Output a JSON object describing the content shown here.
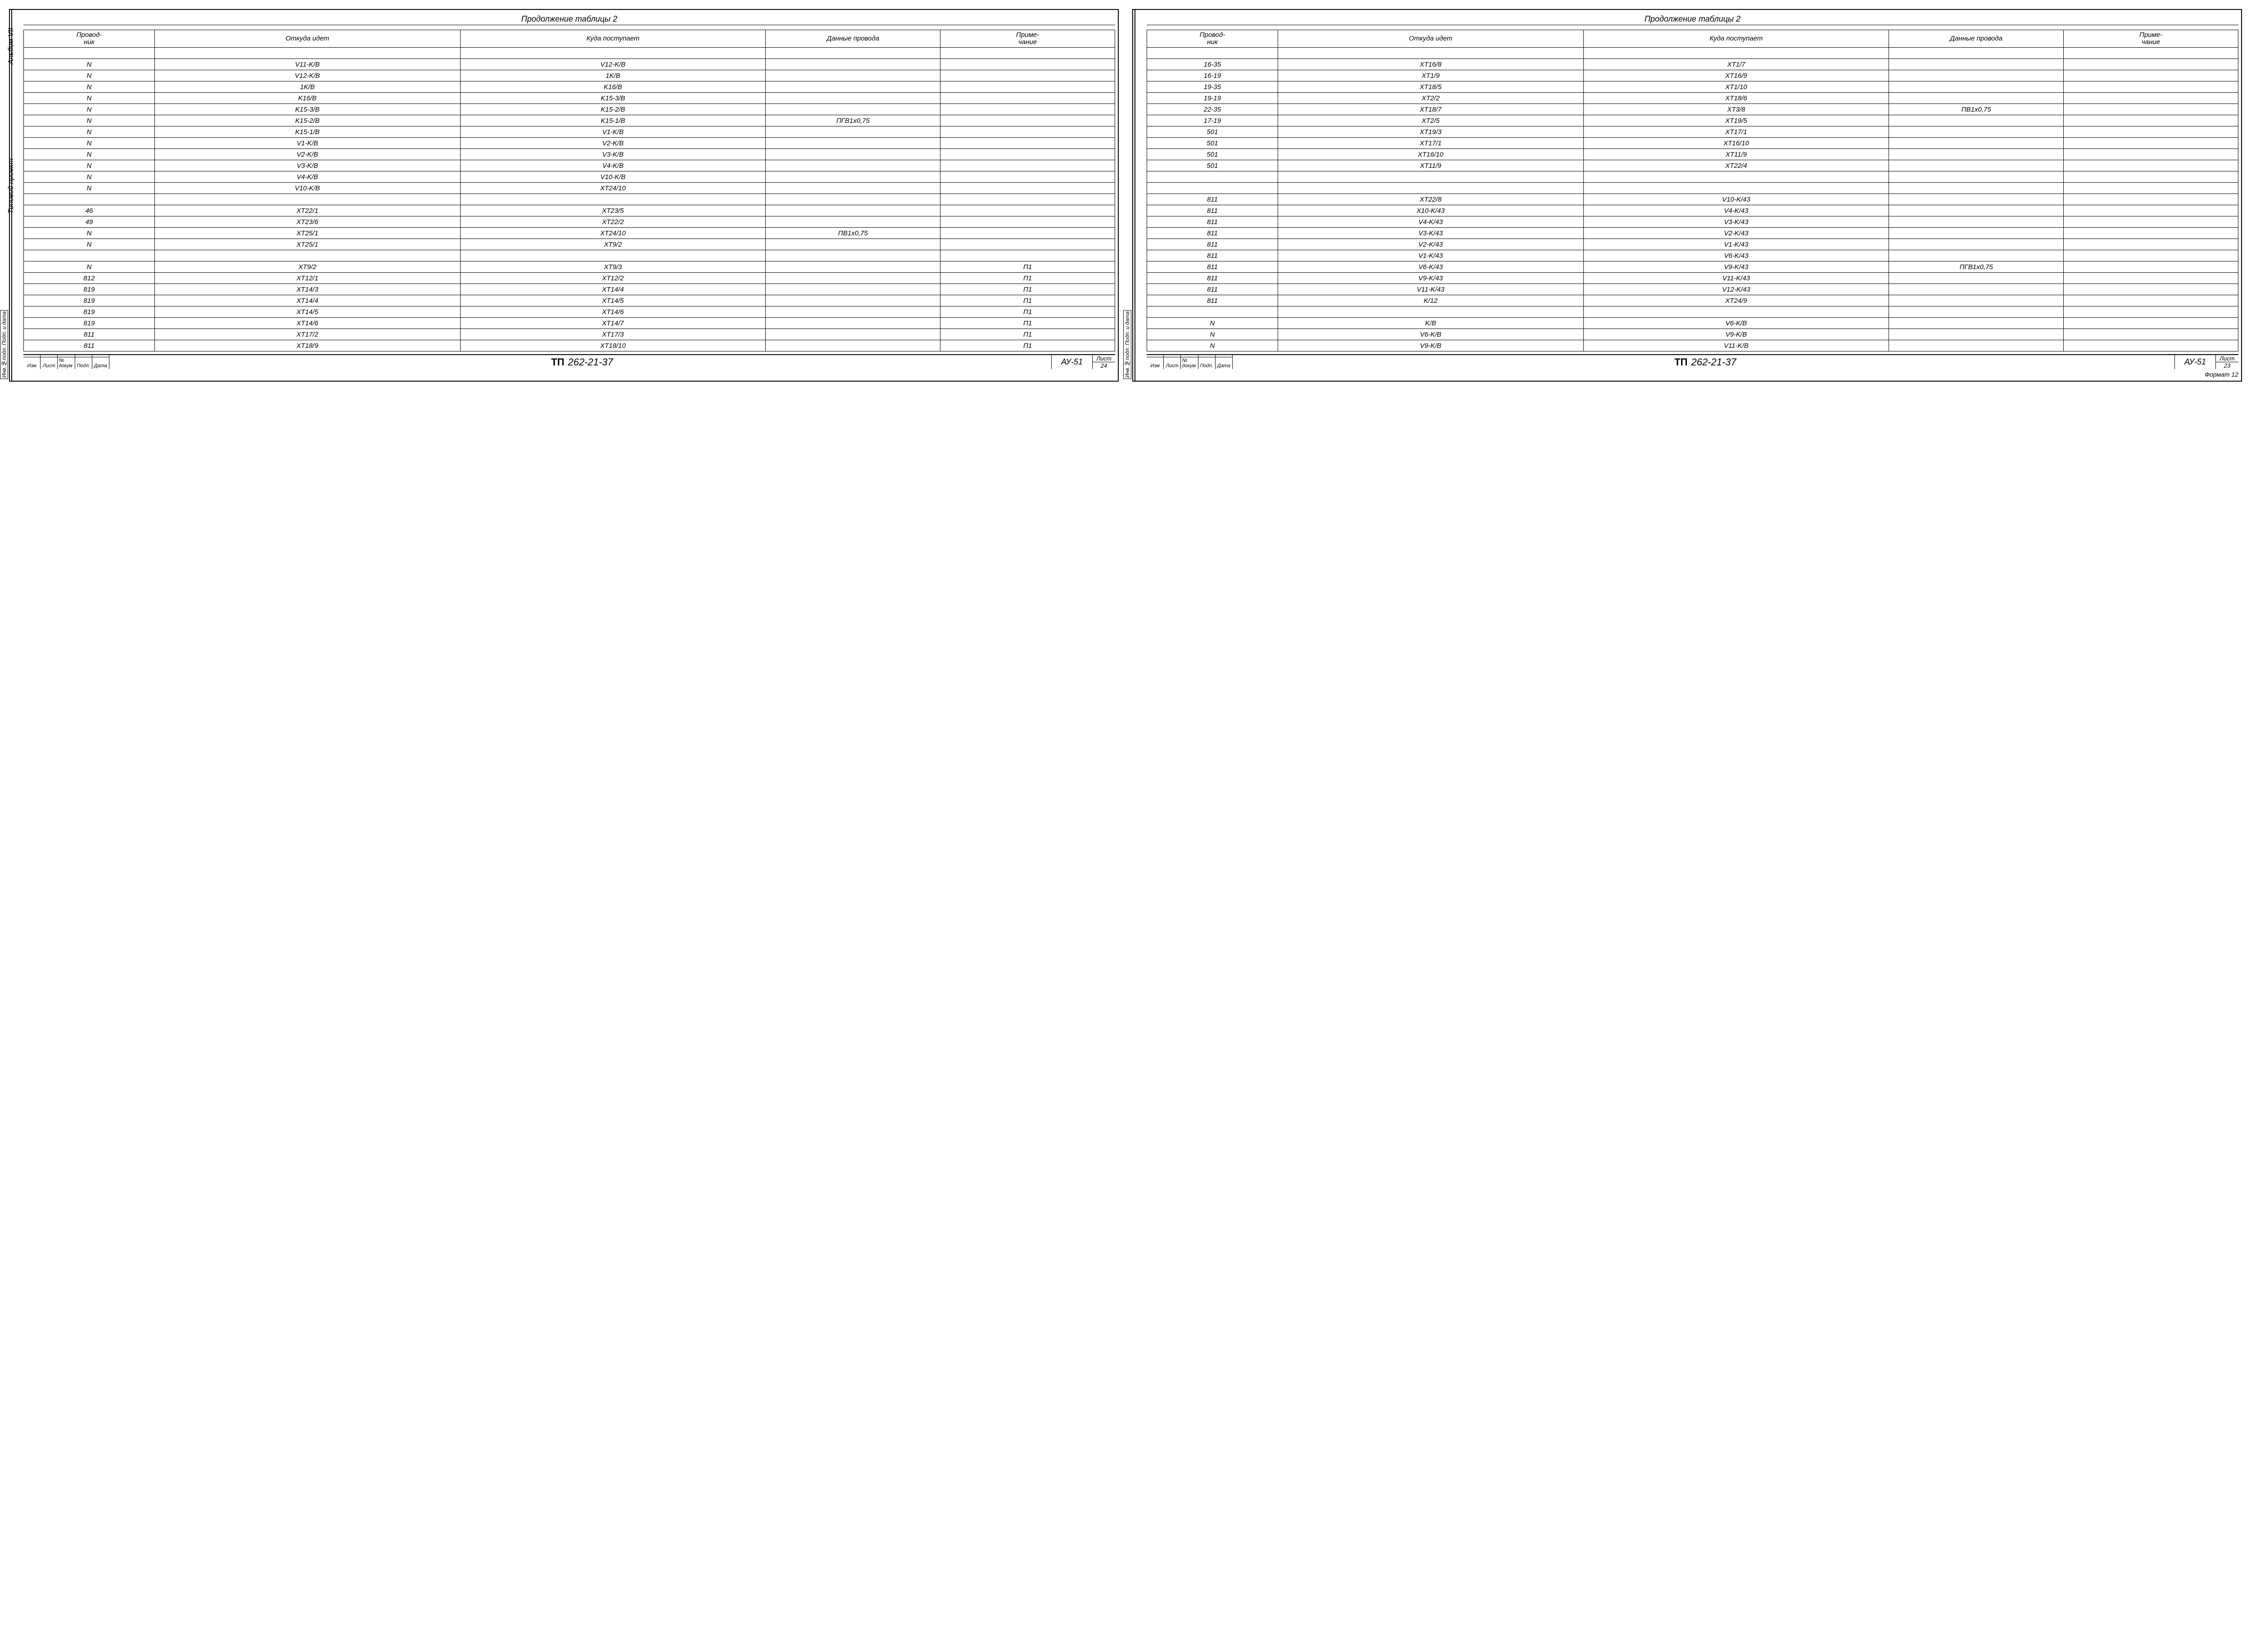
{
  "sheets": [
    {
      "continuation": "Продолжение таблицы 2",
      "vlabel1": "Альбом VII",
      "vlabel2": "Типовой проект",
      "side_stamp": "Инв.№подл. Подп. и дата",
      "headers": [
        "Провод-ник",
        "Откуда идет",
        "Куда поступает",
        "Данные провода",
        "Приме-чание"
      ],
      "rows": [
        [
          "N",
          "V11-K/B",
          "V12-K/B",
          "",
          ""
        ],
        [
          "N",
          "V12-K/B",
          "1K/B",
          "",
          ""
        ],
        [
          "N",
          "1K/B",
          "K16/B",
          "",
          ""
        ],
        [
          "N",
          "K16/B",
          "K15-3/B",
          "",
          ""
        ],
        [
          "N",
          "K15-3/B",
          "K15-2/B",
          "",
          ""
        ],
        [
          "N",
          "K15-2/B",
          "K15-1/B",
          "ПГВ1х0,75",
          ""
        ],
        [
          "N",
          "K15-1/B",
          "V1-K/B",
          "",
          ""
        ],
        [
          "N",
          "V1-K/B",
          "V2-K/B",
          "",
          ""
        ],
        [
          "N",
          "V2-K/B",
          "V3-K/B",
          "",
          ""
        ],
        [
          "N",
          "V3-K/B",
          "V4-K/B",
          "",
          ""
        ],
        [
          "N",
          "V4-K/B",
          "V10-K/B",
          "",
          ""
        ],
        [
          "N",
          "V10-K/B",
          "XT24/10",
          "",
          ""
        ],
        [
          "",
          "",
          "",
          "",
          ""
        ],
        [
          "46",
          "XT22/1",
          "XT23/5",
          "",
          ""
        ],
        [
          "49",
          "XT23/6",
          "XT22/2",
          "",
          ""
        ],
        [
          "N",
          "XT25/1",
          "XT24/10",
          "ПВ1х0,75",
          ""
        ],
        [
          "N",
          "XT25/1",
          "XT9/2",
          "",
          ""
        ],
        [
          "",
          "",
          "",
          "",
          ""
        ],
        [
          "N",
          "XT9/2",
          "XT9/3",
          "",
          "П1"
        ],
        [
          "812",
          "XT12/1",
          "XT12/2",
          "",
          "П1"
        ],
        [
          "819",
          "XT14/3",
          "XT14/4",
          "",
          "П1"
        ],
        [
          "819",
          "XT14/4",
          "XT14/5",
          "",
          "П1"
        ],
        [
          "819",
          "XT14/5",
          "XT14/6",
          "",
          "П1"
        ],
        [
          "819",
          "XT14/6",
          "XT14/7",
          "",
          "П1"
        ],
        [
          "811",
          "XT17/2",
          "XT17/3",
          "",
          "П1"
        ],
        [
          "811",
          "XT18/9",
          "XT18/10",
          "",
          "П1"
        ]
      ],
      "titleblock": {
        "rev_cells": [
          "Изм",
          "Лист",
          "№ докум",
          "Подп.",
          "Дата"
        ],
        "tp": "ТП",
        "code": "262-21-37",
        "suffix": "АУ-51",
        "sheet_label": "Лист",
        "sheet_num": "24"
      }
    },
    {
      "continuation": "Продолжение таблицы 2",
      "side_stamp": "Инв.№подл. Подп. и дата",
      "headers": [
        "Провод-ник",
        "Откуда идет",
        "Куда поступает",
        "Данные провода",
        "Приме-чание"
      ],
      "rows": [
        [
          "16-35",
          "XT16/8",
          "XT1/7",
          "",
          ""
        ],
        [
          "16-19",
          "XT1/9",
          "XT16/9",
          "",
          ""
        ],
        [
          "19-35",
          "XT18/5",
          "XT1/10",
          "",
          ""
        ],
        [
          "19-19",
          "XT2/2",
          "XT18/6",
          "",
          ""
        ],
        [
          "22-35",
          "XT18/7",
          "XT3/8",
          "ПВ1х0,75",
          ""
        ],
        [
          "17-19",
          "XT2/5",
          "XT19/5",
          "",
          ""
        ],
        [
          "501",
          "XT19/3",
          "XT17/1",
          "",
          ""
        ],
        [
          "501",
          "XT17/1",
          "XT16/10",
          "",
          ""
        ],
        [
          "501",
          "XT16/10",
          "XT11/9",
          "",
          ""
        ],
        [
          "501",
          "XT11/9",
          "XT22/4",
          "",
          ""
        ],
        [
          "",
          "",
          "",
          "",
          ""
        ],
        [
          "",
          "",
          "",
          "",
          ""
        ],
        [
          "811",
          "XT22/8",
          "V10-K/43",
          "",
          ""
        ],
        [
          "811",
          "X10-K/43",
          "V4-K/43",
          "",
          ""
        ],
        [
          "811",
          "V4-K/43",
          "V3-K/43",
          "",
          ""
        ],
        [
          "811",
          "V3-K/43",
          "V2-K/43",
          "",
          ""
        ],
        [
          "811",
          "V2-K/43",
          "V1-K/43",
          "",
          ""
        ],
        [
          "811",
          "V1-K/43",
          "V6-K/43",
          "",
          ""
        ],
        [
          "811",
          "V6-K/43",
          "V9-K/43",
          "ПГВ1х0,75",
          ""
        ],
        [
          "811",
          "V9-K/43",
          "V11-K/43",
          "",
          ""
        ],
        [
          "811",
          "V11-K/43",
          "V12-K/43",
          "",
          ""
        ],
        [
          "811",
          "K/12",
          "XT24/9",
          "",
          ""
        ],
        [
          "",
          "",
          "",
          "",
          ""
        ],
        [
          "N",
          "K/B",
          "V6-K/B",
          "",
          ""
        ],
        [
          "N",
          "V6-K/B",
          "V9-K/B",
          "",
          ""
        ],
        [
          "N",
          "V9-K/B",
          "V11-K/B",
          "",
          ""
        ]
      ],
      "titleblock": {
        "rev_cells": [
          "Изм",
          "Лист",
          "№ докум",
          "Подп.",
          "Дата"
        ],
        "tp": "ТП",
        "code": "262-21-37",
        "suffix": "АУ-51",
        "sheet_label": "Лист",
        "sheet_num": "23"
      },
      "format_note": "Формат 12"
    }
  ],
  "style": {
    "colors": {
      "ink": "#000000",
      "paper": "#ffffff"
    },
    "font_family": "Comic Sans MS, cursive",
    "col_widths_pct": [
      12,
      28,
      28,
      16,
      16
    ]
  }
}
